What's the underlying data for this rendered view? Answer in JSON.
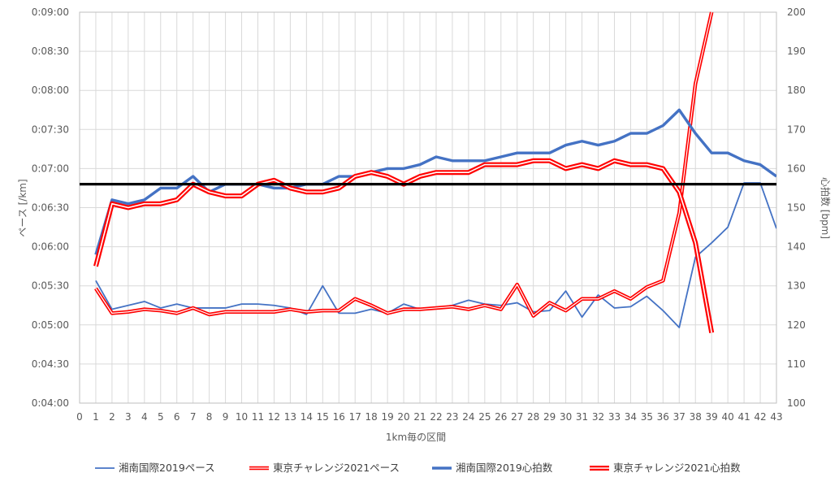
{
  "chart_data": {
    "type": "line",
    "title": "",
    "xlabel": "1km毎の区間",
    "ylabel_left": "ペース [/km]",
    "ylabel_right": "心拍数 [bpm]",
    "x_ticks": [
      "0",
      "1",
      "2",
      "3",
      "4",
      "5",
      "6",
      "7",
      "8",
      "9",
      "10",
      "11",
      "12",
      "13",
      "14",
      "15",
      "16",
      "17",
      "18",
      "19",
      "20",
      "21",
      "22",
      "23",
      "24",
      "25",
      "26",
      "27",
      "28",
      "29",
      "30",
      "31",
      "32",
      "33",
      "34",
      "35",
      "36",
      "37",
      "38",
      "39",
      "40",
      "41",
      "42",
      "43"
    ],
    "x_range": [
      0,
      43
    ],
    "y_left_ticks": [
      "0:04:00",
      "0:04:30",
      "0:05:00",
      "0:05:30",
      "0:06:00",
      "0:06:30",
      "0:07:00",
      "0:07:30",
      "0:08:00",
      "0:08:30",
      "0:09:00"
    ],
    "y_left_range_seconds": [
      240,
      540
    ],
    "y_right_ticks": [
      "100",
      "110",
      "120",
      "130",
      "140",
      "150",
      "160",
      "170",
      "180",
      "190",
      "200"
    ],
    "y_right_range": [
      100,
      200
    ],
    "reference_line_bpm": 156,
    "grid": true,
    "legend_position": "bottom",
    "series": [
      {
        "name": "湘南国際2019ペース",
        "axis": "left",
        "style": "thin",
        "color": "#4472C4",
        "x": [
          1,
          2,
          3,
          4,
          5,
          6,
          7,
          8,
          9,
          10,
          11,
          12,
          13,
          14,
          15,
          16,
          17,
          18,
          19,
          20,
          21,
          22,
          23,
          24,
          25,
          26,
          27,
          28,
          29,
          30,
          31,
          32,
          33,
          34,
          35,
          36,
          37,
          38,
          39,
          40,
          41,
          42,
          43
        ],
        "y_seconds": [
          334,
          312,
          315,
          318,
          313,
          316,
          313,
          313,
          313,
          316,
          316,
          315,
          313,
          308,
          330,
          309,
          309,
          312,
          309,
          316,
          312,
          313,
          315,
          319,
          316,
          315,
          317,
          310,
          311,
          326,
          306,
          323,
          313,
          314,
          322,
          311,
          298,
          352,
          363,
          375,
          409,
          409,
          374
        ]
      },
      {
        "name": "東京チャレンジ2021ペース",
        "axis": "left",
        "style": "double",
        "color": "#FF0000",
        "x": [
          1,
          2,
          3,
          4,
          5,
          6,
          7,
          8,
          9,
          10,
          11,
          12,
          13,
          14,
          15,
          16,
          17,
          18,
          19,
          20,
          21,
          22,
          23,
          24,
          25,
          26,
          27,
          28,
          29,
          30,
          31,
          32,
          33,
          34,
          35,
          36,
          37,
          38,
          39
        ],
        "y_seconds": [
          328,
          309,
          310,
          312,
          311,
          309,
          313,
          308,
          310,
          310,
          310,
          310,
          312,
          310,
          311,
          311,
          320,
          315,
          309,
          312,
          312,
          313,
          314,
          312,
          315,
          312,
          331,
          307,
          317,
          311,
          320,
          320,
          326,
          320,
          329,
          334,
          386,
          485,
          540
        ]
      },
      {
        "name": "湘南国際2019心拍数",
        "axis": "right",
        "style": "thick",
        "color": "#4472C4",
        "x": [
          1,
          2,
          3,
          4,
          5,
          6,
          7,
          8,
          9,
          10,
          11,
          12,
          13,
          14,
          15,
          16,
          17,
          18,
          19,
          20,
          21,
          22,
          23,
          24,
          25,
          26,
          27,
          28,
          29,
          30,
          31,
          32,
          33,
          34,
          35,
          36,
          37,
          38,
          39,
          40,
          41,
          42,
          43
        ],
        "y": [
          138,
          152,
          151,
          152,
          155,
          155,
          158,
          154,
          156,
          156,
          156,
          155,
          155,
          156,
          156,
          158,
          158,
          159,
          160,
          160,
          161,
          163,
          162,
          162,
          162,
          163,
          164,
          164,
          164,
          166,
          167,
          166,
          167,
          169,
          169,
          171,
          175,
          169,
          164,
          164,
          162,
          161,
          158
        ]
      },
      {
        "name": "東京チャレンジ2021心拍数",
        "axis": "right",
        "style": "double",
        "color": "#FF0000",
        "x": [
          1,
          2,
          3,
          4,
          5,
          6,
          7,
          8,
          9,
          10,
          11,
          12,
          13,
          14,
          15,
          16,
          17,
          18,
          19,
          20,
          21,
          22,
          23,
          24,
          25,
          26,
          27,
          28,
          29,
          30,
          31,
          32,
          33,
          34,
          35,
          36,
          37,
          38,
          39
        ],
        "y": [
          135,
          151,
          150,
          151,
          151,
          152,
          156,
          154,
          153,
          153,
          156,
          157,
          155,
          154,
          154,
          155,
          158,
          159,
          158,
          156,
          158,
          159,
          159,
          159,
          161,
          161,
          161,
          162,
          162,
          160,
          161,
          160,
          162,
          161,
          161,
          160,
          154,
          141,
          118
        ]
      }
    ]
  }
}
